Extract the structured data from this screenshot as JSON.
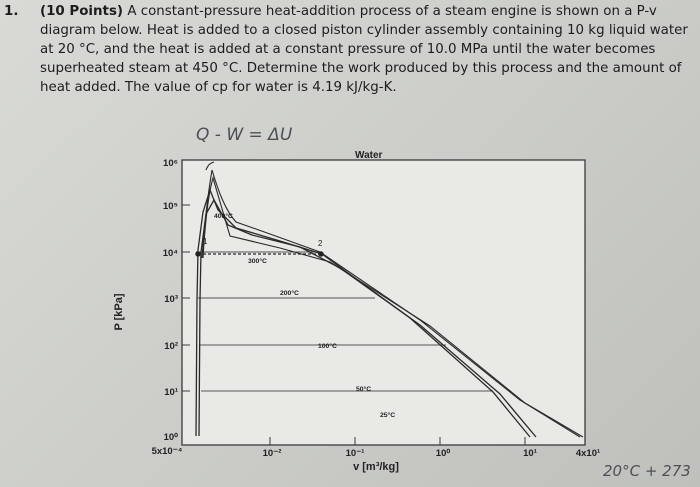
{
  "problem": {
    "number": "1.",
    "points": "(10 Points)",
    "text": "A constant-pressure heat-addition process of a steam engine is shown on a P-v diagram below. Heat is added to a closed piston cylinder assembly containing 10 kg liquid water at 20 °C, and the heat is added at a constant pressure of 10.0 MPa until the water becomes superheated steam at 450 °C. Determine the work produced by this process and the amount of heat added. The value of cp for water is 4.19 kJ/kg-K."
  },
  "handwriting": {
    "energy_balance": "Q - W = ΔU",
    "temp_note": "20°C + 273"
  },
  "chart_data": {
    "type": "line",
    "title": "Water",
    "xlabel": "v [m³/kg]",
    "ylabel": "P [kPa]",
    "xscale": "log",
    "yscale": "log",
    "xlim": [
      0.0005,
      40
    ],
    "ylim": [
      1,
      1000000
    ],
    "x_ticks": [
      "5x10⁻⁴",
      "10⁻²",
      "10⁻¹",
      "10⁰",
      "10¹",
      "4x10¹"
    ],
    "y_ticks": [
      "10⁰",
      "10¹",
      "10²",
      "10³",
      "10⁴",
      "10⁵",
      "10⁶"
    ],
    "isotherm_labels": [
      "400°C",
      "300°C",
      "200°C",
      "100°C",
      "50°C",
      "25°C"
    ],
    "state_labels": [
      "1",
      "2"
    ],
    "grid": false
  }
}
